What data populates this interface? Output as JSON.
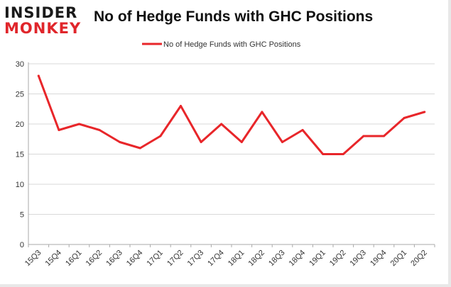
{
  "logo": {
    "top": "INSIDER",
    "bottom": "MONKEY"
  },
  "chart_data": {
    "type": "line",
    "title": "No of Hedge Funds with GHC Positions",
    "xlabel": "",
    "ylabel": "",
    "categories": [
      "15Q3",
      "15Q4",
      "16Q1",
      "16Q2",
      "16Q3",
      "16Q4",
      "17Q1",
      "17Q2",
      "17Q3",
      "17Q4",
      "18Q1",
      "18Q2",
      "18Q3",
      "18Q4",
      "19Q1",
      "19Q2",
      "19Q3",
      "19Q4",
      "20Q1",
      "20Q2"
    ],
    "series": [
      {
        "name": "No of Hedge Funds with GHC Positions",
        "color": "#e8262a",
        "values": [
          28,
          19,
          20,
          19,
          17,
          16,
          18,
          23,
          17,
          20,
          17,
          22,
          17,
          19,
          15,
          15,
          18,
          18,
          21,
          22
        ]
      }
    ],
    "yticks": [
      0,
      5,
      10,
      15,
      20,
      25,
      30
    ],
    "ylim": [
      0,
      30
    ],
    "grid": true,
    "legend": "top-center"
  }
}
